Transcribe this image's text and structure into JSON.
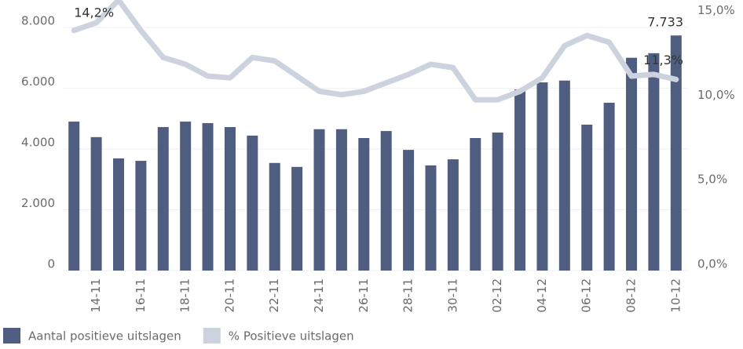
{
  "chart_data": {
    "type": "bar_line",
    "categories": [
      null,
      "14-11",
      null,
      "16-11",
      null,
      "18-11",
      null,
      "20-11",
      null,
      "22-11",
      null,
      "24-11",
      null,
      "26-11",
      null,
      "28-11",
      null,
      "30-11",
      null,
      "02-12",
      null,
      "04-12",
      null,
      "06-12",
      null,
      "08-12",
      null,
      "10-12"
    ],
    "series": [
      {
        "name": "Aantal positieve uitslagen",
        "type": "bar",
        "color": "#4f5e80",
        "values": [
          4900,
          4390,
          3690,
          3610,
          4720,
          4900,
          4850,
          4720,
          4440,
          3540,
          3410,
          4650,
          4650,
          4360,
          4590,
          3970,
          3460,
          3660,
          4360,
          4540,
          5960,
          6190,
          6250,
          4800,
          5520,
          7000,
          7150,
          7733
        ],
        "value_labels": [
          null,
          null,
          null,
          null,
          null,
          null,
          null,
          null,
          null,
          null,
          null,
          null,
          null,
          null,
          null,
          null,
          null,
          null,
          null,
          null,
          null,
          null,
          null,
          null,
          null,
          null,
          null,
          "7.733"
        ]
      },
      {
        "name": "% Positieve uitslagen",
        "type": "line",
        "axis": "y2",
        "color": "#cdd3de",
        "values": [
          14.2,
          14.65,
          16.0,
          14.2,
          12.6,
          12.2,
          11.5,
          11.4,
          12.6,
          12.4,
          11.5,
          10.6,
          10.4,
          10.6,
          11.1,
          11.6,
          12.2,
          12.0,
          10.1,
          10.1,
          10.6,
          11.4,
          13.3,
          13.9,
          13.5,
          11.5,
          11.6,
          11.3
        ],
        "value_labels": [
          "14,2%",
          null,
          null,
          null,
          null,
          null,
          null,
          null,
          null,
          null,
          null,
          null,
          null,
          null,
          null,
          null,
          null,
          null,
          null,
          null,
          null,
          null,
          null,
          null,
          null,
          null,
          null,
          "11,3%"
        ]
      }
    ],
    "ylim": [
      0,
      8900
    ],
    "yticks": [
      0,
      {
        "value": 2000,
        "label": "2.000"
      },
      {
        "value": 4000,
        "label": "4.000"
      },
      {
        "value": 6000,
        "label": "6.000"
      },
      {
        "value": 8000,
        "label": "8.000"
      }
    ],
    "y2lim": [
      0,
      16
    ],
    "y2ticks": [
      {
        "value": 0,
        "label": "0,0%"
      },
      {
        "value": 5,
        "label": "5,0%"
      },
      {
        "value": 10,
        "label": "10,0%"
      },
      {
        "value": 15,
        "label": "15,0%"
      }
    ],
    "grid": true,
    "legend": "bottom"
  }
}
